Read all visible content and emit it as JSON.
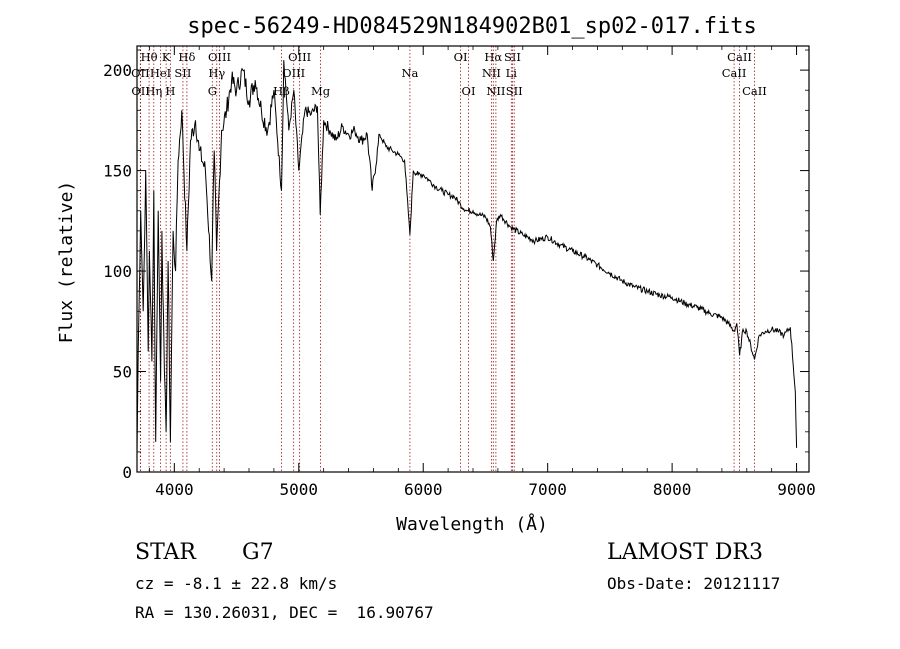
{
  "chart_data": {
    "type": "line",
    "title": "spec-56249-HD084529N184902B01_sp02-017.fits",
    "xlabel": "Wavelength (Å)",
    "ylabel": "Flux (relative)",
    "xlim": [
      3700,
      9100
    ],
    "ylim": [
      0,
      212
    ],
    "x_ticks": [
      4000,
      5000,
      6000,
      7000,
      8000,
      9000
    ],
    "y_ticks": [
      0,
      50,
      100,
      150,
      200
    ],
    "series": [
      {
        "name": "flux",
        "x": [
          3700,
          3710,
          3730,
          3750,
          3770,
          3790,
          3800,
          3820,
          3835,
          3850,
          3870,
          3890,
          3900,
          3920,
          3934,
          3950,
          3968,
          3990,
          4010,
          4030,
          4060,
          4101,
          4130,
          4170,
          4200,
          4250,
          4300,
          4320,
          4340,
          4380,
          4420,
          4460,
          4500,
          4550,
          4600,
          4650,
          4700,
          4750,
          4800,
          4861,
          4880,
          4920,
          4960,
          5000,
          5050,
          5100,
          5150,
          5172,
          5200,
          5250,
          5300,
          5350,
          5400,
          5450,
          5500,
          5550,
          5590,
          5650,
          5700,
          5750,
          5800,
          5850,
          5893,
          5920,
          5960,
          6000,
          6050,
          6100,
          6150,
          6200,
          6250,
          6300,
          6350,
          6400,
          6450,
          6500,
          6540,
          6563,
          6590,
          6620,
          6700,
          6800,
          6900,
          7000,
          7100,
          7200,
          7300,
          7400,
          7500,
          7600,
          7700,
          7800,
          7900,
          8000,
          8100,
          8200,
          8300,
          8400,
          8450,
          8498,
          8520,
          8542,
          8570,
          8600,
          8662,
          8700,
          8750,
          8800,
          8850,
          8900,
          8950,
          8990,
          9000
        ],
        "y": [
          10,
          60,
          130,
          80,
          150,
          60,
          110,
          55,
          140,
          15,
          130,
          45,
          120,
          50,
          20,
          105,
          15,
          120,
          100,
          155,
          180,
          110,
          165,
          175,
          160,
          150,
          95,
          160,
          110,
          170,
          180,
          195,
          190,
          200,
          185,
          195,
          180,
          170,
          190,
          140,
          205,
          170,
          190,
          150,
          180,
          178,
          182,
          128,
          175,
          170,
          165,
          172,
          168,
          170,
          165,
          168,
          140,
          168,
          162,
          160,
          158,
          155,
          118,
          150,
          148,
          148,
          145,
          142,
          140,
          138,
          137,
          133,
          130,
          130,
          128,
          127,
          122,
          105,
          125,
          128,
          122,
          118,
          115,
          117,
          113,
          110,
          107,
          103,
          99,
          95,
          92,
          90,
          88,
          87,
          84,
          82,
          79,
          77,
          74,
          70,
          74,
          58,
          71,
          70,
          56,
          68,
          70,
          71,
          70,
          68,
          72,
          40,
          12
        ]
      }
    ],
    "lines": [
      {
        "label": "Hθ",
        "x": 3797,
        "row": 1
      },
      {
        "label": "OII",
        "x": 3727,
        "row": 2
      },
      {
        "label": "OII",
        "x": 3729,
        "row": 3
      },
      {
        "label": "HeI",
        "x": 3889,
        "row": 2
      },
      {
        "label": "Hη",
        "x": 3835,
        "row": 3
      },
      {
        "label": "K",
        "x": 3934,
        "row": 1
      },
      {
        "label": "H",
        "x": 3968,
        "row": 3
      },
      {
        "label": "SII",
        "x": 4069,
        "row": 2
      },
      {
        "label": "Hδ",
        "x": 4101,
        "row": 1
      },
      {
        "label": "OIII",
        "x": 4363,
        "row": 1
      },
      {
        "label": "Hγ",
        "x": 4341,
        "row": 2
      },
      {
        "label": "G",
        "x": 4305,
        "row": 3
      },
      {
        "label": "Hβ",
        "x": 4861,
        "row": 3
      },
      {
        "label": "OIII",
        "x": 5007,
        "row": 1
      },
      {
        "label": "OIII",
        "x": 4959,
        "row": 2
      },
      {
        "label": "Mg",
        "x": 5175,
        "row": 3
      },
      {
        "label": "Na",
        "x": 5893,
        "row": 2
      },
      {
        "label": "OI",
        "x": 6300,
        "row": 1
      },
      {
        "label": "OI",
        "x": 6364,
        "row": 3
      },
      {
        "label": "Hα",
        "x": 6563,
        "row": 1
      },
      {
        "label": "NII",
        "x": 6548,
        "row": 2
      },
      {
        "label": "NII",
        "x": 6584,
        "row": 3
      },
      {
        "label": "SII",
        "x": 6717,
        "row": 1
      },
      {
        "label": "Li",
        "x": 6708,
        "row": 2
      },
      {
        "label": "SII",
        "x": 6731,
        "row": 3
      },
      {
        "label": "CaII",
        "x": 8542,
        "row": 1
      },
      {
        "label": "CaII",
        "x": 8498,
        "row": 2
      },
      {
        "label": "CaII",
        "x": 8662,
        "row": 3
      }
    ]
  },
  "info": {
    "object_class": "STAR",
    "subclass": "G7",
    "survey": "LAMOST DR3",
    "redshift": "cz = -8.1 ± 22.8 km/s",
    "obs_date": "Obs-Date: 20121117",
    "coords": "RA = 130.26031, DEC =  16.90767"
  }
}
